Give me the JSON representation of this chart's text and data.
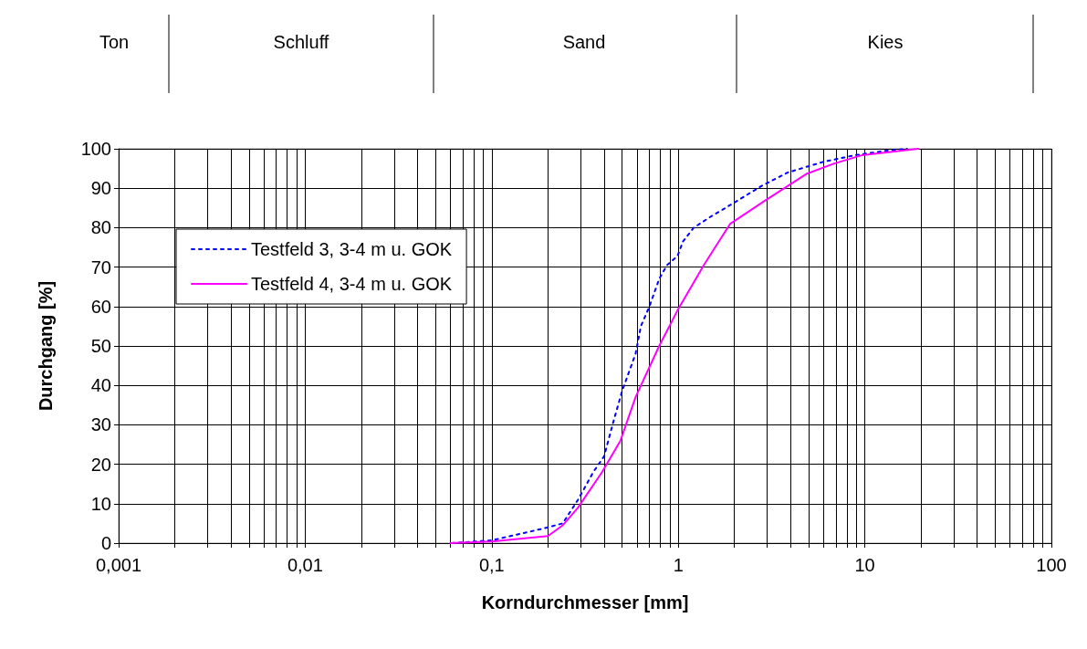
{
  "chart_data": {
    "type": "line",
    "xlabel": "Korndurchmesser [mm]",
    "ylabel": "Durchgang [%]",
    "log": "x",
    "grid": true,
    "legend": "top left",
    "xlim": [
      0.001,
      100
    ],
    "ylim": [
      0,
      100
    ],
    "xticks": [
      {
        "value": 0.001,
        "label": "0,001"
      },
      {
        "value": 0.002,
        "label": null
      },
      {
        "value": 0.003,
        "label": null
      },
      {
        "value": 0.004,
        "label": null
      },
      {
        "value": 0.005,
        "label": null
      },
      {
        "value": 0.006,
        "label": null
      },
      {
        "value": 0.007,
        "label": null
      },
      {
        "value": 0.008,
        "label": null
      },
      {
        "value": 0.009,
        "label": null
      },
      {
        "value": 0.01,
        "label": "0,01"
      },
      {
        "value": 0.02,
        "label": null
      },
      {
        "value": 0.03,
        "label": null
      },
      {
        "value": 0.04,
        "label": null
      },
      {
        "value": 0.05,
        "label": null
      },
      {
        "value": 0.06,
        "label": null
      },
      {
        "value": 0.07,
        "label": null
      },
      {
        "value": 0.08,
        "label": null
      },
      {
        "value": 0.09,
        "label": null
      },
      {
        "value": 0.1,
        "label": "0,1"
      },
      {
        "value": 0.2,
        "label": null
      },
      {
        "value": 0.3,
        "label": null
      },
      {
        "value": 0.4,
        "label": null
      },
      {
        "value": 0.5,
        "label": null
      },
      {
        "value": 0.6,
        "label": null
      },
      {
        "value": 0.7,
        "label": null
      },
      {
        "value": 0.8,
        "label": null
      },
      {
        "value": 0.9,
        "label": null
      },
      1,
      {
        "value": 2,
        "label": null
      },
      {
        "value": 3,
        "label": null
      },
      {
        "value": 4,
        "label": null
      },
      {
        "value": 5,
        "label": null
      },
      {
        "value": 6,
        "label": null
      },
      {
        "value": 7,
        "label": null
      },
      {
        "value": 8,
        "label": null
      },
      {
        "value": 9,
        "label": null
      },
      10,
      {
        "value": 20,
        "label": null
      },
      {
        "value": 30,
        "label": null
      },
      {
        "value": 40,
        "label": null
      },
      {
        "value": 50,
        "label": null
      },
      {
        "value": 60,
        "label": null
      },
      {
        "value": 70,
        "label": null
      },
      {
        "value": 80,
        "label": null
      },
      {
        "value": 90,
        "label": null
      },
      100
    ],
    "yticks": [
      0,
      10,
      20,
      30,
      40,
      50,
      60,
      70,
      80,
      90,
      100
    ],
    "annotations": [
      "Ton",
      "Schluff",
      "Sand",
      "Kies"
    ],
    "series": [
      {
        "name": "Testfeld 3, 3-4 m u. GOK",
        "color": "#0000ff",
        "line_style": "dotted",
        "x": [
          0.061,
          0.1,
          0.185,
          0.24,
          0.29,
          0.35,
          0.4,
          0.45,
          0.5,
          0.59,
          0.63,
          0.7,
          0.79,
          0.87,
          0.99,
          1.06,
          1.21,
          1.47,
          1.94,
          2.8,
          3.87,
          6,
          8.9,
          13.5,
          16.8
        ],
        "values": [
          0,
          0.7,
          3.6,
          5,
          11,
          18,
          22,
          31,
          38.6,
          48,
          55,
          60,
          67,
          70.5,
          72.8,
          76.5,
          80,
          82.6,
          86,
          90.6,
          94,
          96.7,
          98.4,
          99.6,
          100
        ]
      },
      {
        "name": "Testfeld 4, 3-4 m u. GOK",
        "color": "#ff00ff",
        "line_style": "solid",
        "x": [
          0.06,
          0.1,
          0.2,
          0.24,
          0.29,
          0.39,
          0.49,
          0.59,
          0.79,
          0.99,
          1.37,
          1.65,
          1.9,
          2.95,
          3.87,
          4.9,
          6.8,
          9.7,
          19.3
        ],
        "values": [
          0,
          0.4,
          1.8,
          4.5,
          9,
          18,
          26,
          37,
          50,
          59,
          70.5,
          76.5,
          81,
          87,
          90.6,
          93.7,
          96.2,
          98.4,
          100
        ]
      }
    ]
  }
}
